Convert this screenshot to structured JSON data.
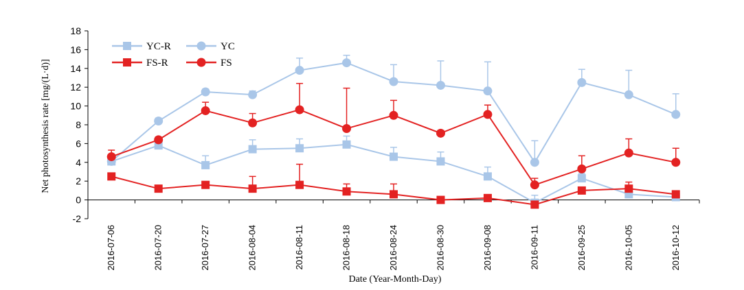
{
  "chart_data": {
    "type": "line",
    "title": "",
    "xlabel": "Date (Year-Month-Day)",
    "ylabel": "Net photosynthesis rate [mg/(L·d)]",
    "ylim": [
      -2,
      18
    ],
    "yticks": [
      -2,
      0,
      2,
      4,
      6,
      8,
      10,
      12,
      14,
      16,
      18
    ],
    "grid": false,
    "legend_position": "top-left",
    "categories": [
      "2016-07-06",
      "2016-07-20",
      "2016-07-27",
      "2016-08-04",
      "2016-08-11",
      "2016-08-18",
      "2016-08-24",
      "2016-08-30",
      "2016-09-08",
      "2016-09-11",
      "2016-09-25",
      "2016-10-05",
      "2016-10-12"
    ],
    "series": [
      {
        "name": "YC-R",
        "marker": "square",
        "color": "#a9c6e8",
        "values": [
          4.1,
          5.8,
          3.7,
          5.4,
          5.5,
          5.9,
          4.6,
          4.1,
          2.5,
          -0.3,
          2.3,
          0.6,
          0.3
        ],
        "error_plus": [
          0.3,
          0.3,
          1.0,
          1.0,
          1.0,
          0.9,
          1.0,
          1.0,
          1.0,
          0.8,
          0.5,
          0.5,
          0.6
        ]
      },
      {
        "name": "YC",
        "marker": "circle",
        "color": "#a9c6e8",
        "values": [
          4.1,
          8.4,
          11.5,
          11.2,
          13.8,
          14.6,
          12.6,
          12.2,
          11.6,
          4.0,
          12.5,
          11.2,
          9.1
        ],
        "error_plus": [
          0.3,
          0.3,
          0.3,
          0.4,
          1.3,
          0.8,
          1.8,
          2.6,
          3.1,
          2.3,
          1.4,
          2.6,
          2.2
        ]
      },
      {
        "name": "FS-R",
        "marker": "square",
        "color": "#e32222",
        "values": [
          2.5,
          1.2,
          1.6,
          1.2,
          1.6,
          0.9,
          0.6,
          0.0,
          0.2,
          -0.5,
          1.0,
          1.2,
          0.6
        ],
        "error_plus": [
          0.3,
          0.3,
          0.3,
          1.3,
          2.2,
          0.8,
          1.1,
          0.3,
          0.3,
          0.3,
          0.3,
          0.7,
          0.3
        ]
      },
      {
        "name": "FS",
        "marker": "circle",
        "color": "#e32222",
        "values": [
          4.6,
          6.4,
          9.5,
          8.2,
          9.6,
          7.6,
          9.0,
          7.1,
          9.1,
          1.6,
          3.3,
          5.0,
          4.0
        ],
        "error_plus": [
          0.7,
          0.3,
          0.9,
          1.0,
          2.8,
          4.3,
          1.6,
          0.3,
          1.0,
          0.7,
          1.4,
          1.5,
          1.5
        ]
      }
    ]
  }
}
